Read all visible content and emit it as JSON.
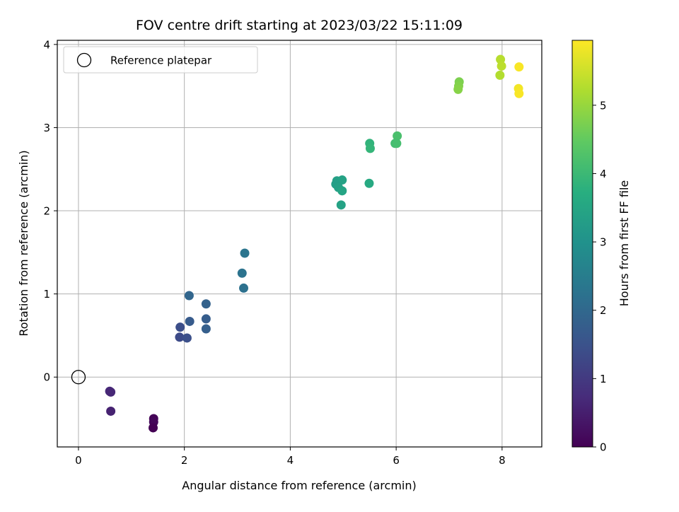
{
  "chart_data": {
    "type": "scatter",
    "title": "FOV centre drift starting at 2023/03/22 15:11:09",
    "xlabel": "Angular distance from reference (arcmin)",
    "ylabel": "Rotation from reference (arcmin)",
    "xlim": [
      -0.4,
      8.75
    ],
    "ylim": [
      -0.84,
      4.05
    ],
    "xticks": [
      0,
      2,
      4,
      6,
      8
    ],
    "yticks": [
      0,
      1,
      2,
      3,
      4
    ],
    "grid": true,
    "legend": {
      "placement": "top-left",
      "entries": [
        "Reference platepar"
      ]
    },
    "reference_point": {
      "name": "Reference platepar",
      "x": 0,
      "y": 0
    },
    "colorbar": {
      "label": "Hours from first FF file",
      "colormap": "viridis",
      "range": [
        0,
        5.95
      ],
      "ticks": [
        0,
        1,
        2,
        3,
        4,
        5
      ]
    },
    "points": [
      {
        "x": 1.42,
        "y": -0.5,
        "c": 0.05
      },
      {
        "x": 1.42,
        "y": -0.54,
        "c": 0.1
      },
      {
        "x": 1.41,
        "y": -0.61,
        "c": 0.0
      },
      {
        "x": 0.59,
        "y": -0.17,
        "c": 0.7
      },
      {
        "x": 0.61,
        "y": -0.18,
        "c": 0.65
      },
      {
        "x": 0.61,
        "y": -0.41,
        "c": 0.55
      },
      {
        "x": 2.09,
        "y": 0.98,
        "c": 1.95
      },
      {
        "x": 1.92,
        "y": 0.6,
        "c": 1.4
      },
      {
        "x": 2.1,
        "y": 0.67,
        "c": 1.7
      },
      {
        "x": 1.91,
        "y": 0.48,
        "c": 1.35
      },
      {
        "x": 2.05,
        "y": 0.47,
        "c": 1.45
      },
      {
        "x": 2.41,
        "y": 0.88,
        "c": 1.85
      },
      {
        "x": 2.41,
        "y": 0.7,
        "c": 1.75
      },
      {
        "x": 2.41,
        "y": 0.58,
        "c": 1.8
      },
      {
        "x": 3.14,
        "y": 1.49,
        "c": 2.3
      },
      {
        "x": 3.09,
        "y": 1.25,
        "c": 2.25
      },
      {
        "x": 3.12,
        "y": 1.07,
        "c": 2.2
      },
      {
        "x": 4.88,
        "y": 2.36,
        "c": 3.35
      },
      {
        "x": 4.98,
        "y": 2.37,
        "c": 3.4
      },
      {
        "x": 4.86,
        "y": 2.32,
        "c": 3.3
      },
      {
        "x": 4.91,
        "y": 2.28,
        "c": 3.35
      },
      {
        "x": 4.98,
        "y": 2.24,
        "c": 3.45
      },
      {
        "x": 4.96,
        "y": 2.07,
        "c": 3.4
      },
      {
        "x": 5.49,
        "y": 2.33,
        "c": 3.6
      },
      {
        "x": 5.5,
        "y": 2.81,
        "c": 3.85
      },
      {
        "x": 5.51,
        "y": 2.75,
        "c": 3.9
      },
      {
        "x": 6.02,
        "y": 2.9,
        "c": 4.2
      },
      {
        "x": 5.98,
        "y": 2.81,
        "c": 4.1
      },
      {
        "x": 6.01,
        "y": 2.81,
        "c": 4.15
      },
      {
        "x": 7.19,
        "y": 3.55,
        "c": 4.75
      },
      {
        "x": 7.18,
        "y": 3.5,
        "c": 4.8
      },
      {
        "x": 7.17,
        "y": 3.46,
        "c": 4.85
      },
      {
        "x": 7.97,
        "y": 3.82,
        "c": 5.3
      },
      {
        "x": 7.99,
        "y": 3.74,
        "c": 5.35
      },
      {
        "x": 7.96,
        "y": 3.63,
        "c": 5.25
      },
      {
        "x": 8.32,
        "y": 3.73,
        "c": 5.9
      },
      {
        "x": 8.31,
        "y": 3.47,
        "c": 5.85
      },
      {
        "x": 8.32,
        "y": 3.41,
        "c": 5.9
      }
    ]
  }
}
